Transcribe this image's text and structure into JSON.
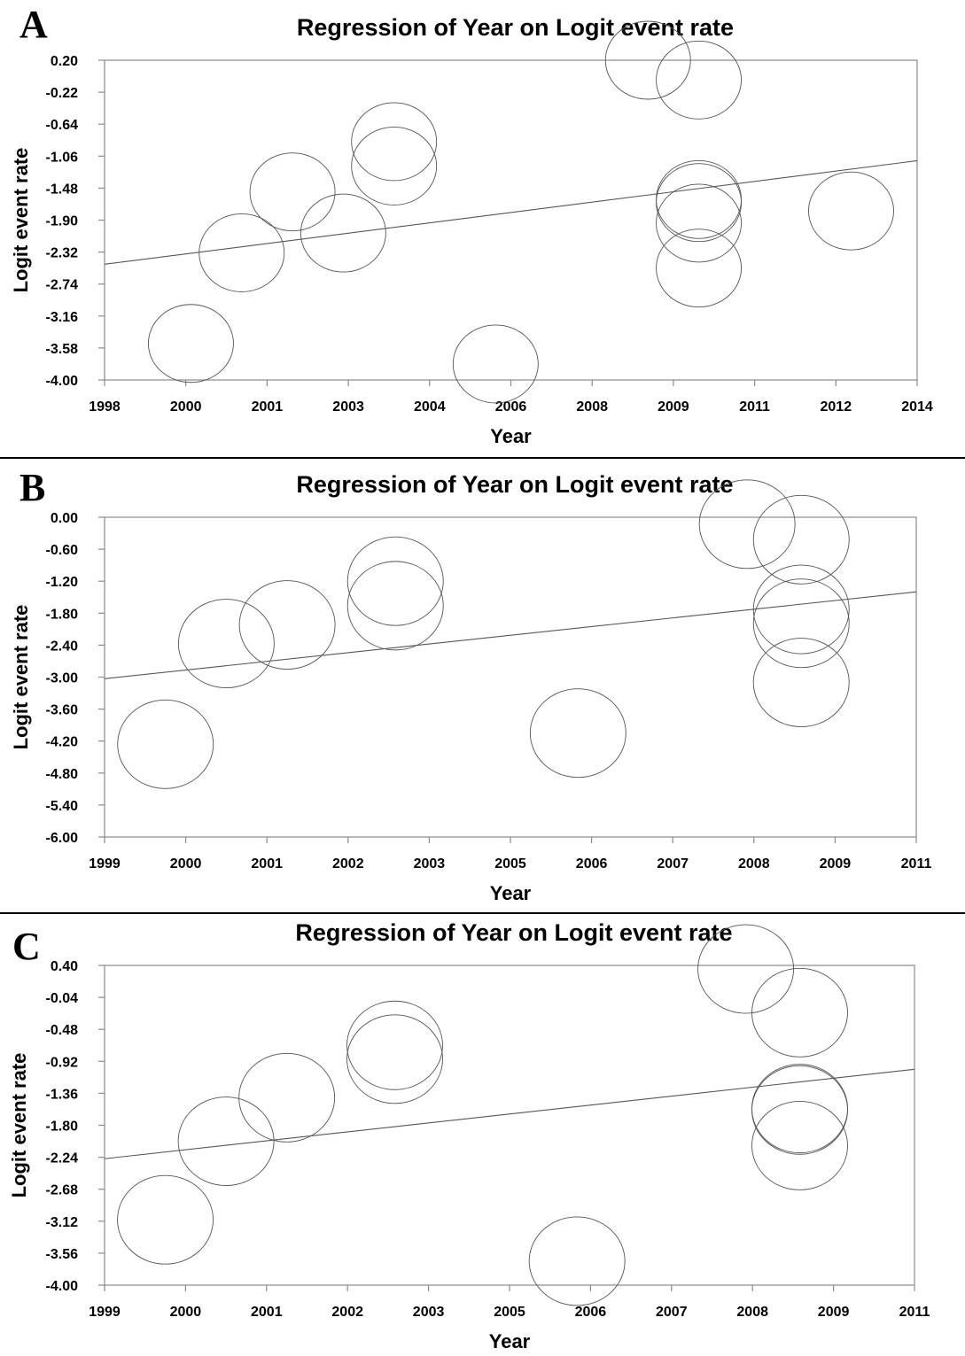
{
  "chart_data": [
    {
      "panel": "A",
      "type": "scatter",
      "title": "Regression of Year on Logit event rate",
      "xlabel": "Year",
      "ylabel": "Logit event rate",
      "ylim": [
        -4.0,
        0.2
      ],
      "x_tick_labels": [
        "1998",
        "2000",
        "2001",
        "2003",
        "2004",
        "2006",
        "2008",
        "2009",
        "2011",
        "2012",
        "2014"
      ],
      "y_tick_labels": [
        "0.20",
        "-0.22",
        "-0.64",
        "-1.06",
        "-1.48",
        "-1.90",
        "-2.32",
        "-2.74",
        "-3.16",
        "-3.58",
        "-4.00"
      ],
      "grid": false,
      "points": [
        {
          "x": 1999.7,
          "y": -3.52
        },
        {
          "x": 2000.7,
          "y": -2.33
        },
        {
          "x": 2001.7,
          "y": -1.53
        },
        {
          "x": 2002.7,
          "y": -2.07
        },
        {
          "x": 2003.7,
          "y": -0.87
        },
        {
          "x": 2003.7,
          "y": -1.19
        },
        {
          "x": 2005.7,
          "y": -3.79
        },
        {
          "x": 2008.7,
          "y": 0.2
        },
        {
          "x": 2009.7,
          "y": -0.06
        },
        {
          "x": 2009.7,
          "y": -1.63
        },
        {
          "x": 2009.7,
          "y": -1.67
        },
        {
          "x": 2009.7,
          "y": -1.94
        },
        {
          "x": 2009.7,
          "y": -2.53
        },
        {
          "x": 2012.7,
          "y": -1.78
        }
      ],
      "regression_line": {
        "x": [
          1998,
          2014
        ],
        "y": [
          -2.48,
          -1.12
        ]
      }
    },
    {
      "panel": "B",
      "type": "scatter",
      "title": "Regression of Year on Logit event rate",
      "xlabel": "Year",
      "ylabel": "Logit event rate",
      "ylim": [
        -6.0,
        0.0
      ],
      "x_tick_labels": [
        "1999",
        "2000",
        "2001",
        "2002",
        "2003",
        "2005",
        "2006",
        "2007",
        "2008",
        "2009",
        "2011"
      ],
      "y_tick_labels": [
        "0.00",
        "-0.60",
        "-1.20",
        "-1.80",
        "-2.40",
        "-3.00",
        "-3.60",
        "-4.20",
        "-4.80",
        "-5.40",
        "-6.00"
      ],
      "grid": false,
      "points": [
        {
          "x": 1999.9,
          "y": -4.26
        },
        {
          "x": 2000.8,
          "y": -2.37
        },
        {
          "x": 2001.7,
          "y": -2.02
        },
        {
          "x": 2003.3,
          "y": -1.2
        },
        {
          "x": 2003.3,
          "y": -1.66
        },
        {
          "x": 2006.0,
          "y": -4.05
        },
        {
          "x": 2008.5,
          "y": -0.13
        },
        {
          "x": 2009.3,
          "y": -0.42
        },
        {
          "x": 2009.3,
          "y": -1.73
        },
        {
          "x": 2009.3,
          "y": -1.99
        },
        {
          "x": 2009.3,
          "y": -3.1
        }
      ],
      "regression_line": {
        "x": [
          1999,
          2011
        ],
        "y": [
          -3.03,
          -1.4
        ]
      }
    },
    {
      "panel": "C",
      "type": "scatter",
      "title": "Regression of Year on Logit event rate",
      "xlabel": "Year",
      "ylabel": "Logit event rate",
      "ylim": [
        -4.0,
        0.4
      ],
      "x_tick_labels": [
        "1999",
        "2000",
        "2001",
        "2002",
        "2003",
        "2005",
        "2006",
        "2007",
        "2008",
        "2009",
        "2011"
      ],
      "y_tick_labels": [
        "0.40",
        "-0.04",
        "-0.48",
        "-0.92",
        "-1.36",
        "-1.80",
        "-2.24",
        "-2.68",
        "-3.12",
        "-3.56",
        "-4.00"
      ],
      "grid": false,
      "points": [
        {
          "x": 1999.9,
          "y": -3.1
        },
        {
          "x": 2000.8,
          "y": -2.02
        },
        {
          "x": 2001.7,
          "y": -1.42
        },
        {
          "x": 2003.3,
          "y": -0.7
        },
        {
          "x": 2003.3,
          "y": -0.89
        },
        {
          "x": 2006.0,
          "y": -3.67
        },
        {
          "x": 2008.5,
          "y": 0.35
        },
        {
          "x": 2009.3,
          "y": -0.25
        },
        {
          "x": 2009.3,
          "y": -1.57
        },
        {
          "x": 2009.3,
          "y": -1.59
        },
        {
          "x": 2009.3,
          "y": -2.08
        }
      ],
      "regression_line": {
        "x": [
          1999,
          2011
        ],
        "y": [
          -2.26,
          -1.03
        ]
      }
    }
  ]
}
